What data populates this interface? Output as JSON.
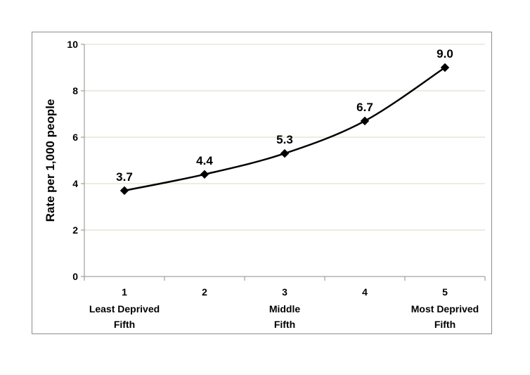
{
  "chart_data": {
    "type": "line",
    "title": "",
    "xlabel": "",
    "ylabel": "Rate  per 1,000 people",
    "ylim": [
      0,
      10
    ],
    "yticks": [
      0,
      2,
      4,
      6,
      8,
      10
    ],
    "categories": [
      {
        "num": "1",
        "line1": "Least Deprived",
        "line2": "Fifth"
      },
      {
        "num": "2",
        "line1": "",
        "line2": ""
      },
      {
        "num": "3",
        "line1": "Middle",
        "line2": "Fifth"
      },
      {
        "num": "4",
        "line1": "",
        "line2": ""
      },
      {
        "num": "5",
        "line1": "Most Deprived",
        "line2": "Fifth"
      }
    ],
    "series": [
      {
        "values": [
          3.7,
          4.4,
          5.3,
          6.7,
          9.0
        ],
        "data_labels": [
          "3.7",
          "4.4",
          "5.3",
          "6.7",
          "9.0"
        ]
      }
    ],
    "grid": true,
    "legend": "none",
    "line_color": "#000000",
    "grid_color": "#d9d9c3"
  }
}
